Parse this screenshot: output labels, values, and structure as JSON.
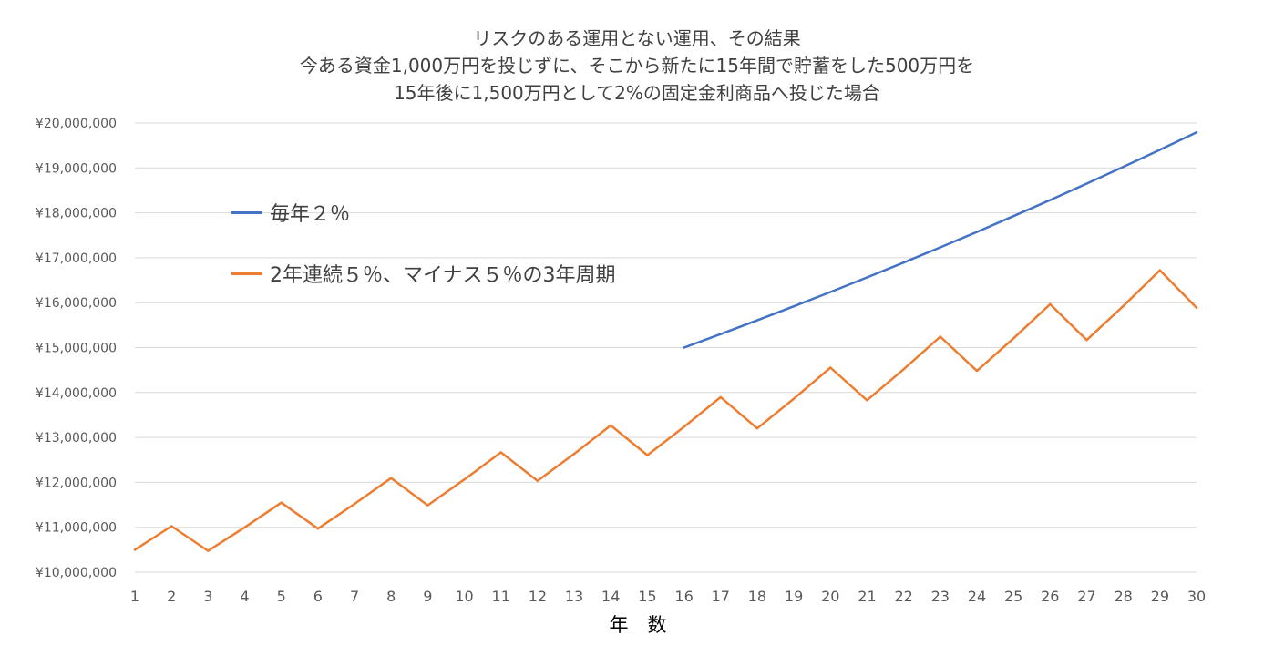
{
  "chart_data": {
    "type": "line",
    "title_lines": [
      "リスクのある運用とない運用、その結果",
      "今ある資金1,000万円を投じずに、そこから新たに15年間で貯蓄をした500万円を",
      "15年後に1,500万円として2%の固定金利商品へ投じた場合"
    ],
    "xlabel": "年　数",
    "ylabel": "",
    "x": [
      1,
      2,
      3,
      4,
      5,
      6,
      7,
      8,
      9,
      10,
      11,
      12,
      13,
      14,
      15,
      16,
      17,
      18,
      19,
      20,
      21,
      22,
      23,
      24,
      25,
      26,
      27,
      28,
      29,
      30
    ],
    "ylim": [
      10000000,
      20000000
    ],
    "y_ticks": [
      10000000,
      11000000,
      12000000,
      13000000,
      14000000,
      15000000,
      16000000,
      17000000,
      18000000,
      19000000,
      20000000
    ],
    "y_tick_labels": [
      "¥10,000,000",
      "¥11,000,000",
      "¥12,000,000",
      "¥13,000,000",
      "¥14,000,000",
      "¥15,000,000",
      "¥16,000,000",
      "¥17,000,000",
      "¥18,000,000",
      "¥19,000,000",
      "¥20,000,000"
    ],
    "grid": true,
    "legend_position": "top-left",
    "series": [
      {
        "name": "毎年２％",
        "color": "#4472c4",
        "x": [
          16,
          17,
          18,
          19,
          20,
          21,
          22,
          23,
          24,
          25,
          26,
          27,
          28,
          29,
          30
        ],
        "values": [
          15000000,
          15300000,
          15606000,
          15918120,
          16236482,
          16561212,
          16892436,
          17230285,
          17574891,
          17926389,
          18284917,
          18650615,
          19023627,
          19404100,
          19792182
        ]
      },
      {
        "name": "2年連続５％、マイナス５％の3年周期",
        "color": "#ed7d31",
        "x": [
          1,
          2,
          3,
          4,
          5,
          6,
          7,
          8,
          9,
          10,
          11,
          12,
          13,
          14,
          15,
          16,
          17,
          18,
          19,
          20,
          21,
          22,
          23,
          24,
          25,
          26,
          27,
          28,
          29,
          30
        ],
        "values": [
          10500000,
          11025000,
          10473750,
          10997438,
          11547309,
          10969944,
          11518441,
          12094363,
          11489645,
          12064127,
          12667334,
          12033967,
          12635665,
          13267448,
          12604076,
          13234280,
          13895994,
          13201194,
          13861254,
          14554317,
          13826601,
          14517931,
          15243828,
          14481636,
          15205718,
          15966004,
          15167704,
          15926089,
          16722393,
          15886273
        ]
      }
    ]
  }
}
